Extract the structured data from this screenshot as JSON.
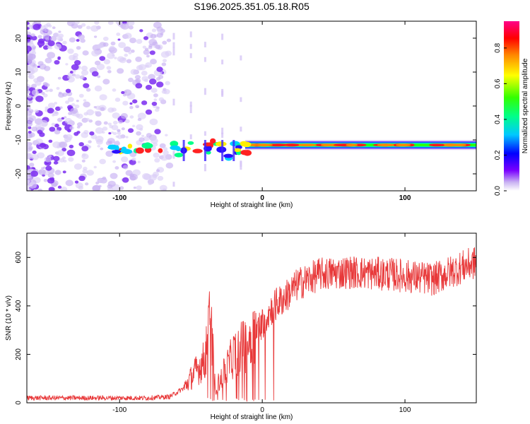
{
  "title": "S196.2025.351.05.18.R05",
  "colors": {
    "snr_line": "#e8393a",
    "axis": "#000000"
  },
  "chart_data": [
    {
      "type": "heatmap",
      "xlabel": "Height of straight line (km)",
      "ylabel": "Frequency (Hz)",
      "xlim": [
        -165,
        150
      ],
      "ylim": [
        -25,
        25
      ],
      "xticks": [
        -100,
        0,
        100
      ],
      "yticks": [
        -20,
        -10,
        0,
        10,
        20
      ],
      "colorbar": {
        "label": "Normalized spectral amplitude",
        "range": [
          0,
          0.95
        ],
        "ticks": [
          "0.0",
          "0.2",
          "0.4",
          "0.6",
          "0.8"
        ],
        "colormap": "rainbow (violet-blue-cyan-green-yellow-red-magenta)"
      },
      "ridge": {
        "description": "Narrow-band signal near -11.5 Hz",
        "x_start": -110,
        "x_end": 150,
        "frequency": [
          -12.5,
          -11.5,
          -11
        ],
        "disturbance_x": [
          -55,
          -40,
          -28,
          -20
        ]
      },
      "noise_region": {
        "x_range": [
          -165,
          -80
        ],
        "frequency_range": [
          -25,
          25
        ]
      }
    },
    {
      "type": "line",
      "xlabel": "Height of straight line (km)",
      "ylabel": "SNR (10 * v/v)",
      "xlim": [
        -165,
        150
      ],
      "ylim": [
        0,
        700
      ],
      "xticks": [
        -100,
        0,
        100
      ],
      "yticks": [
        0,
        200,
        400,
        600
      ],
      "series": [
        {
          "name": "SNR",
          "color": "#e8393a",
          "trend": [
            {
              "x": -165,
              "y": 20
            },
            {
              "x": -110,
              "y": 20
            },
            {
              "x": -80,
              "y": 20
            },
            {
              "x": -65,
              "y": 25
            },
            {
              "x": -55,
              "y": 60
            },
            {
              "x": -48,
              "y": 120
            },
            {
              "x": -40,
              "y": 180
            },
            {
              "x": -37,
              "y": 410
            },
            {
              "x": -33,
              "y": 60
            },
            {
              "x": -28,
              "y": 110
            },
            {
              "x": -20,
              "y": 200
            },
            {
              "x": -10,
              "y": 250
            },
            {
              "x": 0,
              "y": 330
            },
            {
              "x": 8,
              "y": 400
            },
            {
              "x": 15,
              "y": 430
            },
            {
              "x": 25,
              "y": 490
            },
            {
              "x": 40,
              "y": 530
            },
            {
              "x": 60,
              "y": 540
            },
            {
              "x": 90,
              "y": 530
            },
            {
              "x": 120,
              "y": 510
            },
            {
              "x": 140,
              "y": 560
            },
            {
              "x": 150,
              "y": 580
            }
          ]
        }
      ]
    }
  ]
}
